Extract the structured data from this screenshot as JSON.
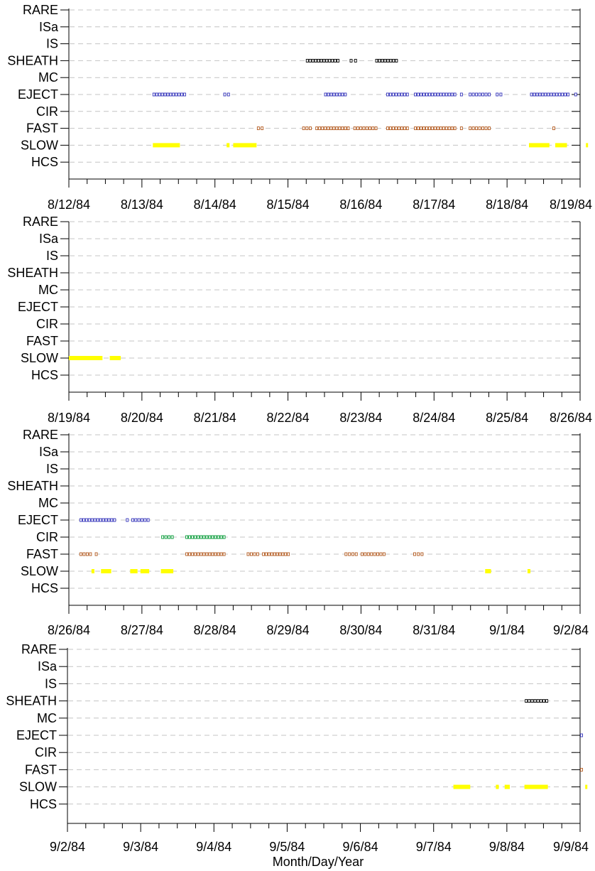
{
  "chart_data": {
    "type": "scatter",
    "xlabel": "Month/Day/Year",
    "categories": [
      "RARE",
      "ISa",
      "IS",
      "SHEATH",
      "MC",
      "EJECT",
      "CIR",
      "FAST",
      "SLOW",
      "HCS"
    ],
    "colors": {
      "SHEATH": "#000000",
      "EJECT": "#3333bb",
      "CIR": "#009933",
      "FAST": "#b35a1f",
      "SLOW": "#ffff00"
    },
    "grid": true,
    "panels": [
      {
        "xlim": [
          "1984-08-12",
          "1984-08-19"
        ],
        "tick_labels": [
          "8/12/84",
          "8/13/84",
          "8/14/84",
          "8/15/84",
          "8/16/84",
          "8/17/84",
          "8/18/84",
          "8/19/84"
        ],
        "segments": {
          "SHEATH": [
            [
              3.25,
              3.7
            ],
            [
              3.85,
              3.94
            ],
            [
              4.2,
              4.5
            ]
          ],
          "EJECT": [
            [
              1.15,
              1.6
            ],
            [
              2.12,
              2.2
            ],
            [
              3.5,
              3.8
            ],
            [
              4.35,
              4.65
            ],
            [
              4.73,
              5.3
            ],
            [
              5.35,
              5.4
            ],
            [
              5.48,
              5.77
            ],
            [
              5.85,
              5.93
            ],
            [
              6.32,
              6.85
            ],
            [
              6.92,
              6.96
            ]
          ],
          "FAST": [
            [
              2.58,
              2.66
            ],
            [
              3.2,
              3.32
            ],
            [
              3.38,
              3.84
            ],
            [
              3.9,
              4.22
            ],
            [
              4.35,
              4.65
            ],
            [
              4.73,
              5.3
            ],
            [
              5.35,
              5.4
            ],
            [
              5.48,
              5.77
            ],
            [
              6.62,
              6.66
            ]
          ],
          "SLOW": [
            [
              1.15,
              1.52
            ],
            [
              2.16,
              2.2
            ],
            [
              2.25,
              2.57
            ],
            [
              6.3,
              6.58
            ],
            [
              6.66,
              6.82
            ],
            [
              7.08,
              7.2
            ]
          ]
        }
      },
      {
        "xlim": [
          "1984-08-19",
          "1984-08-26"
        ],
        "tick_labels": [
          "8/19/84",
          "8/20/84",
          "8/21/84",
          "8/22/84",
          "8/23/84",
          "8/24/84",
          "8/25/84",
          "8/26/84"
        ],
        "segments": {
          "SLOW": [
            [
              0.0,
              0.46
            ],
            [
              0.56,
              0.71
            ]
          ]
        }
      },
      {
        "xlim": [
          "1984-08-26",
          "1984-09-02"
        ],
        "tick_labels": [
          "8/26/84",
          "8/27/84",
          "8/28/84",
          "8/29/84",
          "8/30/84",
          "8/31/84",
          "9/1/84",
          "9/2/84"
        ],
        "segments": {
          "EJECT": [
            [
              0.15,
              0.64
            ],
            [
              0.78,
              0.82
            ],
            [
              0.86,
              1.1
            ]
          ],
          "CIR": [
            [
              1.27,
              1.43
            ],
            [
              1.6,
              2.14
            ]
          ],
          "FAST": [
            [
              0.15,
              0.31
            ],
            [
              0.36,
              0.39
            ],
            [
              1.6,
              2.14
            ],
            [
              2.44,
              2.6
            ],
            [
              2.65,
              3.02
            ],
            [
              3.78,
              3.95
            ],
            [
              4.0,
              4.33
            ],
            [
              4.72,
              4.85
            ]
          ],
          "SLOW": [
            [
              0.31,
              0.35
            ],
            [
              0.44,
              0.58
            ],
            [
              0.84,
              0.94
            ],
            [
              0.98,
              1.1
            ],
            [
              1.26,
              1.43
            ],
            [
              5.7,
              5.78
            ],
            [
              6.28,
              6.32
            ]
          ]
        }
      },
      {
        "xlim": [
          "1984-09-02",
          "1984-09-09"
        ],
        "tick_labels": [
          "9/2/84",
          "9/3/84",
          "9/4/84",
          "9/5/84",
          "9/6/84",
          "9/7/84",
          "9/8/84",
          "9/9/84"
        ],
        "segments": {
          "SHEATH": [
            [
              6.25,
              6.56
            ]
          ],
          "EJECT": [
            [
              7.0,
              7.1
            ]
          ],
          "FAST": [
            [
              7.0,
              7.06
            ]
          ],
          "SLOW": [
            [
              5.27,
              5.5
            ],
            [
              5.85,
              5.89
            ],
            [
              5.97,
              6.04
            ],
            [
              6.24,
              6.56
            ],
            [
              7.07,
              7.12
            ]
          ]
        }
      }
    ]
  }
}
